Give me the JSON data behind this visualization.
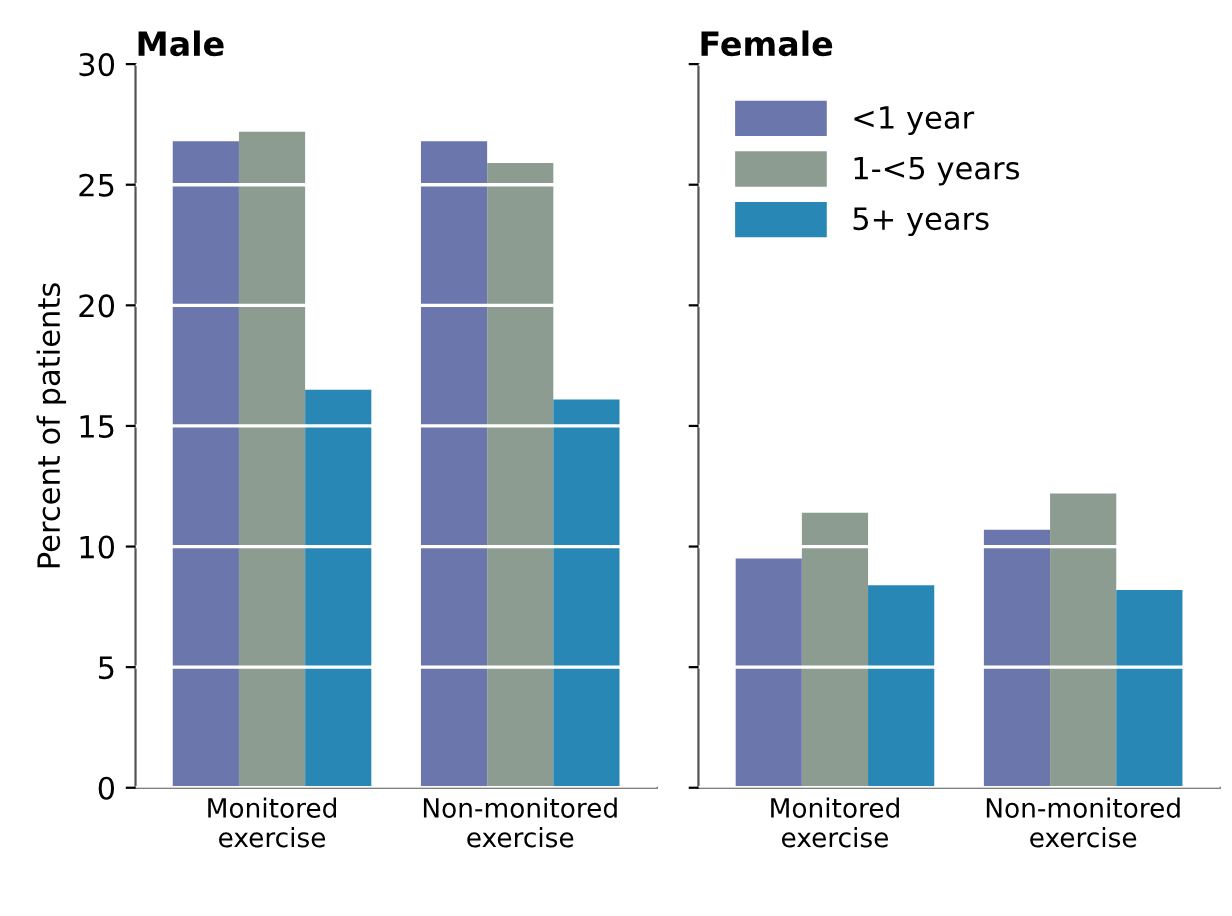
{
  "chart_data": [
    {
      "type": "bar",
      "title": "Male",
      "ylabel": "Percent of patients",
      "categories": [
        "Monitored\nexercise",
        "Non-monitored\nexercise"
      ],
      "ylim": [
        0,
        30
      ],
      "yticks": [
        0,
        5,
        10,
        15,
        20,
        25,
        30
      ],
      "grid": "y",
      "series": [
        {
          "color": "#6b76ad",
          "values": [
            26.8,
            26.8
          ]
        },
        {
          "color": "#8d9c91",
          "values": [
            27.2,
            25.9
          ]
        },
        {
          "color": "#2887b4",
          "values": [
            16.5,
            16.1
          ]
        }
      ]
    },
    {
      "type": "bar",
      "title": "Female",
      "categories": [
        "Monitored\nexercise",
        "Non-monitored\nexercise"
      ],
      "ylim": [
        0,
        30
      ],
      "yticks": [
        0,
        5,
        10,
        15,
        20,
        25,
        30
      ],
      "grid": "y",
      "legend": "top left",
      "tick_labels": "x",
      "series": [
        {
          "name": "<1 year",
          "color": "#6b76ad",
          "values": [
            9.5,
            10.7
          ]
        },
        {
          "name": "1-<5 years",
          "color": "#8d9c91",
          "values": [
            11.4,
            12.2
          ]
        },
        {
          "name": "5+ years",
          "color": "#2887b4",
          "values": [
            8.4,
            8.2
          ]
        }
      ]
    }
  ]
}
